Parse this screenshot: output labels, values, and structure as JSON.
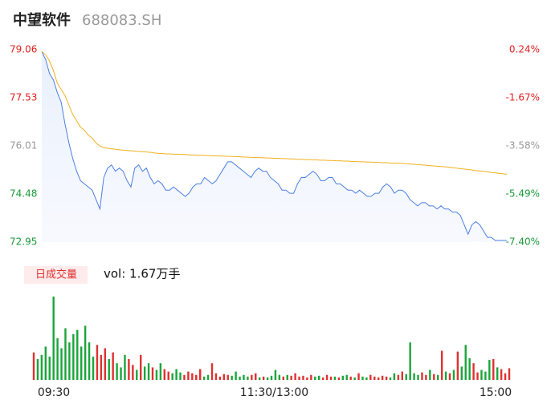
{
  "chart_data": {
    "type": "line",
    "title": "中望软件",
    "subtitle": "688083.SH",
    "xlim": [
      0,
      240
    ],
    "xticks": [
      {
        "value": 0,
        "label": "09:30"
      },
      {
        "value": 120,
        "label": "11:30/13:00"
      },
      {
        "value": 240,
        "label": "15:00"
      }
    ],
    "ylim": [
      72.95,
      79.06
    ],
    "yticks": [
      79.06,
      77.53,
      76.01,
      74.48,
      72.95
    ],
    "y2lim": [
      -7.4,
      0.24
    ],
    "y2ticks": [
      {
        "value": 0.24,
        "label": "0.24%"
      },
      {
        "value": -1.67,
        "label": "-1.67%"
      },
      {
        "value": -3.58,
        "label": "-3.58%"
      },
      {
        "value": -5.49,
        "label": "-5.49%"
      },
      {
        "value": -7.4,
        "label": "-7.40%"
      }
    ],
    "ytick_colors": [
      "#e02020",
      "#e02020",
      "#999999",
      "#1a9a3a",
      "#1a9a3a"
    ],
    "x": [
      0,
      2,
      4,
      6,
      8,
      10,
      12,
      14,
      16,
      18,
      20,
      22,
      24,
      26,
      28,
      30,
      32,
      34,
      36,
      38,
      40,
      42,
      44,
      46,
      48,
      50,
      52,
      54,
      56,
      58,
      60,
      62,
      64,
      66,
      68,
      70,
      72,
      74,
      76,
      78,
      80,
      82,
      84,
      86,
      88,
      90,
      92,
      94,
      96,
      98,
      100,
      102,
      104,
      106,
      108,
      110,
      112,
      114,
      116,
      118,
      120,
      122,
      124,
      126,
      128,
      130,
      132,
      134,
      136,
      138,
      140,
      142,
      144,
      146,
      148,
      150,
      152,
      154,
      156,
      158,
      160,
      162,
      164,
      166,
      168,
      170,
      172,
      174,
      176,
      178,
      180,
      182,
      184,
      186,
      188,
      190,
      192,
      194,
      196,
      198,
      200,
      202,
      204,
      206,
      208,
      210,
      212,
      214,
      216,
      218,
      220,
      222,
      224,
      226,
      228,
      230,
      232,
      234,
      236,
      238,
      240
    ],
    "series": [
      {
        "color": "#4a7fe0",
        "values": [
          79.0,
          78.75,
          78.3,
          78.1,
          77.7,
          77.4,
          76.7,
          76.1,
          75.6,
          75.2,
          74.9,
          74.8,
          74.7,
          74.6,
          74.3,
          74.0,
          75.0,
          75.3,
          75.4,
          75.2,
          75.3,
          75.2,
          74.9,
          74.7,
          75.3,
          75.4,
          75.2,
          75.3,
          75.0,
          74.8,
          74.9,
          74.8,
          74.6,
          74.6,
          74.7,
          74.6,
          74.5,
          74.4,
          74.5,
          74.7,
          74.8,
          74.8,
          75.0,
          74.9,
          74.8,
          74.9,
          75.1,
          75.3,
          75.5,
          75.5,
          75.4,
          75.3,
          75.2,
          75.1,
          75.0,
          75.2,
          75.3,
          75.2,
          75.2,
          75.0,
          74.9,
          74.8,
          74.6,
          74.6,
          74.5,
          74.5,
          74.8,
          75.0,
          75.0,
          75.1,
          75.2,
          75.1,
          74.9,
          74.9,
          75.0,
          75.0,
          74.8,
          74.8,
          74.7,
          74.6,
          74.6,
          74.5,
          74.6,
          74.5,
          74.4,
          74.4,
          74.5,
          74.5,
          74.7,
          74.8,
          74.7,
          74.5,
          74.6,
          74.6,
          74.5,
          74.3,
          74.2,
          74.1,
          74.2,
          74.2,
          74.1,
          74.1,
          74.0,
          74.1,
          74.0,
          74.0,
          73.9,
          73.9,
          73.8,
          73.5,
          73.2,
          73.5,
          73.6,
          73.5,
          73.3,
          73.1,
          73.1,
          73.0,
          73.0,
          73.0,
          73.0
        ]
      },
      {
        "color": "#f0b020",
        "values": [
          79.0,
          78.9,
          78.7,
          78.4,
          78.0,
          77.8,
          77.6,
          77.3,
          77.0,
          76.8,
          76.6,
          76.5,
          76.35,
          76.25,
          76.1,
          76.0,
          75.95,
          75.93,
          75.91,
          75.9,
          75.88,
          75.87,
          75.86,
          75.85,
          75.84,
          75.83,
          75.82,
          75.81,
          75.8,
          75.78,
          75.77,
          75.76,
          75.75,
          75.75,
          75.74,
          75.74,
          75.73,
          75.73,
          75.72,
          75.72,
          75.71,
          75.71,
          75.7,
          75.7,
          75.69,
          75.69,
          75.68,
          75.68,
          75.67,
          75.67,
          75.66,
          75.66,
          75.65,
          75.65,
          75.64,
          75.64,
          75.63,
          75.63,
          75.62,
          75.62,
          75.61,
          75.61,
          75.6,
          75.6,
          75.59,
          75.59,
          75.58,
          75.58,
          75.57,
          75.57,
          75.56,
          75.56,
          75.55,
          75.55,
          75.54,
          75.54,
          75.53,
          75.53,
          75.52,
          75.52,
          75.51,
          75.51,
          75.5,
          75.5,
          75.49,
          75.49,
          75.48,
          75.48,
          75.47,
          75.47,
          75.46,
          75.46,
          75.45,
          75.45,
          75.44,
          75.43,
          75.42,
          75.41,
          75.4,
          75.39,
          75.38,
          75.37,
          75.36,
          75.35,
          75.34,
          75.33,
          75.31,
          75.3,
          75.28,
          75.27,
          75.25,
          75.24,
          75.22,
          75.21,
          75.2,
          75.18,
          75.16,
          75.15,
          75.13,
          75.12,
          75.1
        ]
      }
    ],
    "volume": {
      "legend": "日成交量",
      "label": "vol: 1.67万手",
      "ylim": [
        0,
        1000
      ],
      "up_color": "#e03030",
      "down_color": "#1aa53a",
      "values": [
        330,
        250,
        300,
        400,
        280,
        1000,
        500,
        380,
        620,
        450,
        550,
        600,
        400,
        650,
        450,
        280,
        420,
        300,
        380,
        250,
        330,
        200,
        150,
        300,
        250,
        180,
        120,
        300,
        160,
        200,
        150,
        120,
        200,
        130,
        100,
        80,
        130,
        90,
        60,
        100,
        80,
        60,
        130,
        40,
        60,
        200,
        80,
        40,
        70,
        60,
        50,
        100,
        40,
        60,
        40,
        60,
        80,
        30,
        40,
        30,
        50,
        120,
        60,
        40,
        60,
        50,
        80,
        40,
        50,
        30,
        60,
        40,
        50,
        30,
        60,
        40,
        40,
        30,
        50,
        60,
        40,
        30,
        80,
        40,
        30,
        60,
        40,
        30,
        50,
        40,
        30,
        80,
        60,
        100,
        70,
        450,
        80,
        60,
        90,
        60,
        120,
        70,
        60,
        350,
        100,
        80,
        120,
        340,
        160,
        420,
        260,
        200,
        90,
        120,
        100,
        240,
        250,
        150,
        130,
        80,
        140
      ]
    }
  }
}
